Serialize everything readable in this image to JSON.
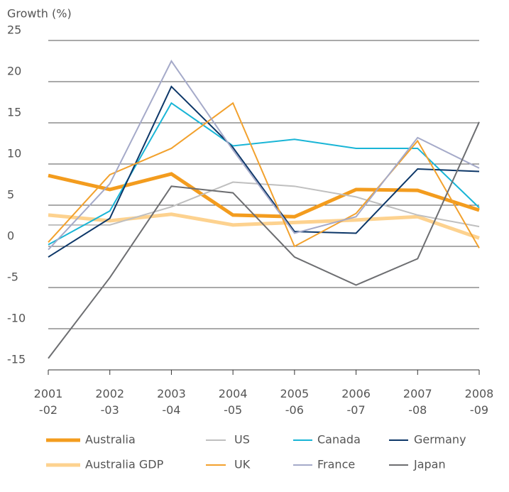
{
  "chart_data": {
    "type": "line",
    "y_label": "Growth (%)",
    "categories": [
      "2001\n-02",
      "2002\n-03",
      "2003\n-04",
      "2004\n-05",
      "2005\n-06",
      "2006\n-07",
      "2007\n-08",
      "2008\n-09"
    ],
    "ylim": [
      -15,
      25
    ],
    "yticks": [
      -15,
      -10,
      -5,
      0,
      5,
      10,
      15,
      20,
      25
    ],
    "grid": true,
    "series": [
      {
        "name": "Australia",
        "color": "#f39c1e",
        "width": 5,
        "values": [
          8.6,
          6.9,
          8.8,
          3.8,
          3.6,
          6.9,
          6.8,
          4.4
        ]
      },
      {
        "name": "US",
        "color": "#bfbfbf",
        "width": 2,
        "values": [
          2.6,
          2.6,
          4.8,
          7.8,
          7.3,
          6.0,
          3.8,
          2.4
        ]
      },
      {
        "name": "Canada",
        "color": "#19b5d6",
        "width": 2,
        "values": [
          0.2,
          4.3,
          17.4,
          12.2,
          13.0,
          11.9,
          11.9,
          4.7
        ]
      },
      {
        "name": "Germany",
        "color": "#0d3768",
        "width": 2,
        "values": [
          -1.3,
          3.4,
          19.4,
          12.0,
          1.8,
          1.6,
          9.4,
          9.1
        ]
      },
      {
        "name": "Australia GDP",
        "color": "#fdd28f",
        "width": 5,
        "values": [
          3.8,
          3.1,
          3.9,
          2.6,
          2.9,
          3.2,
          3.6,
          1.0
        ]
      },
      {
        "name": "UK",
        "color": "#f2a12d",
        "width": 2,
        "values": [
          0.5,
          8.7,
          11.9,
          17.4,
          0.0,
          4.0,
          12.8,
          -0.2
        ]
      },
      {
        "name": "France",
        "color": "#a5aac9",
        "width": 2,
        "values": [
          -0.4,
          7.6,
          22.5,
          11.7,
          1.6,
          3.6,
          13.2,
          9.5
        ]
      },
      {
        "name": "Japan",
        "color": "#6d6e71",
        "width": 2,
        "values": [
          -13.6,
          -3.8,
          7.3,
          6.5,
          -1.3,
          -4.7,
          -1.5,
          15.1
        ]
      }
    ]
  }
}
